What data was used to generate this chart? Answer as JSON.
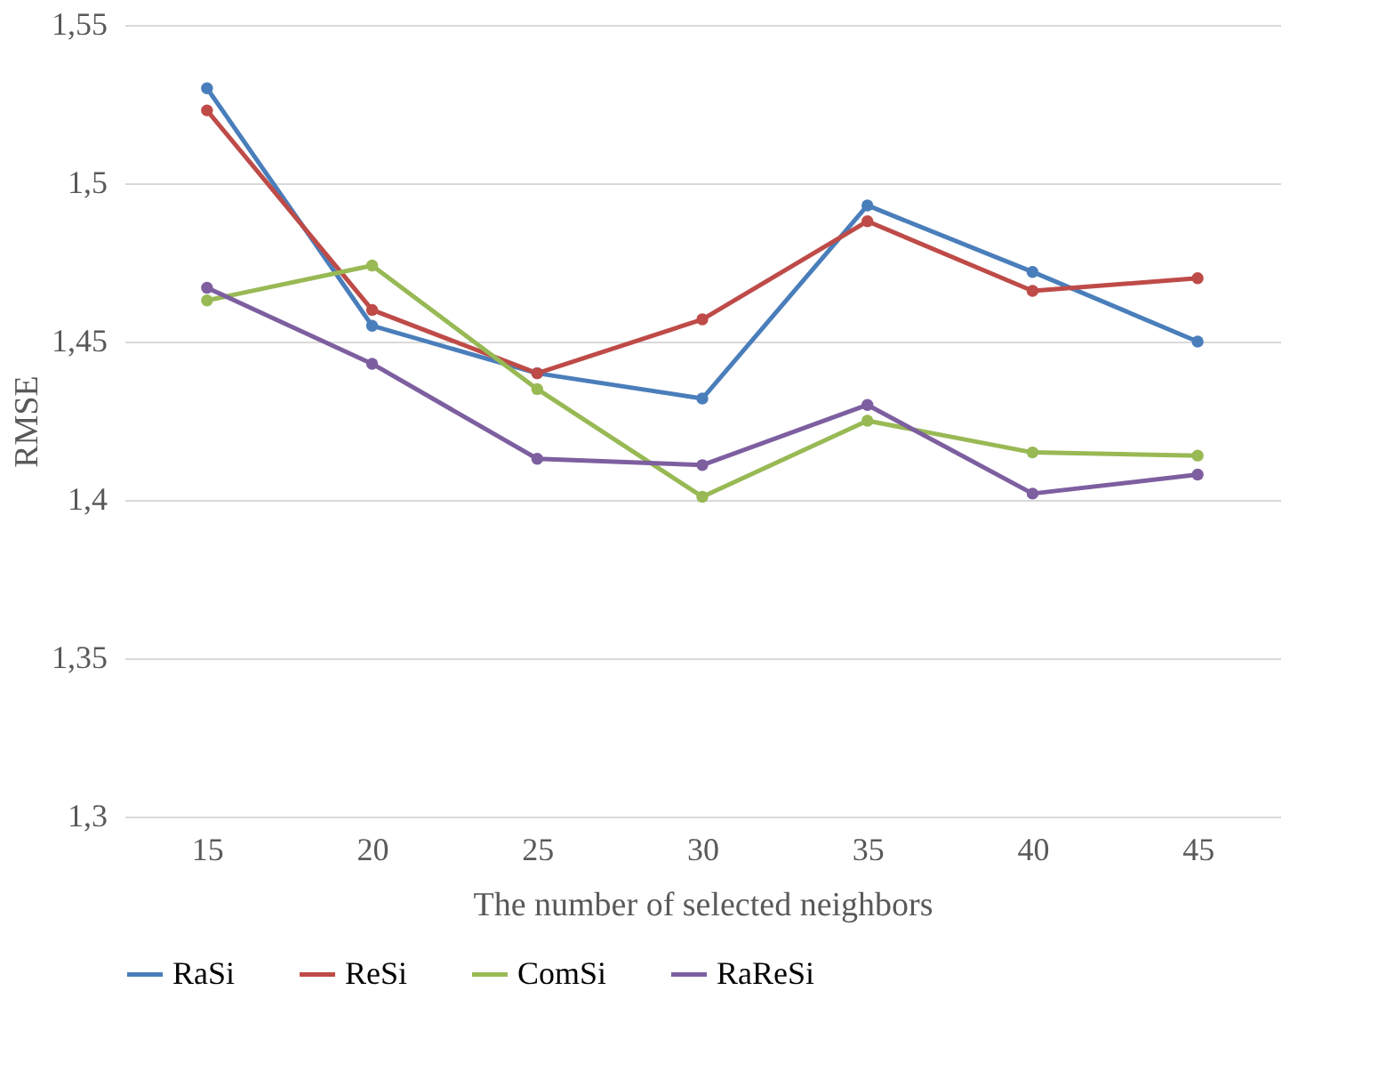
{
  "chart_data": {
    "type": "line",
    "xlabel": "The number of selected neighbors",
    "ylabel": "RMSE",
    "categories": [
      "15",
      "20",
      "25",
      "30",
      "35",
      "40",
      "45"
    ],
    "series": [
      {
        "name": "RaSi",
        "color": "#4a7ebb",
        "values": [
          1.53,
          1.455,
          1.44,
          1.432,
          1.493,
          1.472,
          1.45
        ]
      },
      {
        "name": "ReSi",
        "color": "#be4b48",
        "values": [
          1.523,
          1.46,
          1.44,
          1.457,
          1.488,
          1.466,
          1.47
        ]
      },
      {
        "name": "ComSi",
        "color": "#98b954",
        "values": [
          1.463,
          1.474,
          1.435,
          1.401,
          1.425,
          1.415,
          1.414
        ]
      },
      {
        "name": "RaReSi",
        "color": "#7d5fa0",
        "values": [
          1.467,
          1.443,
          1.413,
          1.411,
          1.43,
          1.402,
          1.408
        ]
      }
    ],
    "ylim": [
      1.3,
      1.55
    ],
    "yticks": [
      {
        "value": 1.3,
        "label": "1,3"
      },
      {
        "value": 1.35,
        "label": "1,35"
      },
      {
        "value": 1.4,
        "label": "1,4"
      },
      {
        "value": 1.45,
        "label": "1,45"
      },
      {
        "value": 1.5,
        "label": "1,5"
      },
      {
        "value": 1.55,
        "label": "1,55"
      }
    ],
    "grid": "y",
    "legend": "bottom",
    "marker": "circle",
    "line_style": "solid"
  }
}
